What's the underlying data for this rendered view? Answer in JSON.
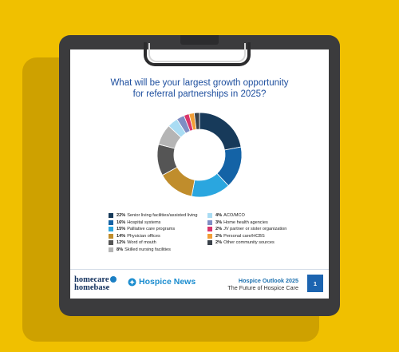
{
  "chart_data": {
    "type": "pie",
    "variant": "donut",
    "title": "What will be your largest growth opportunity for referral partnerships in 2025?",
    "title_lines": [
      "What will be your largest growth opportunity",
      "for referral partnerships in 2025?"
    ],
    "legend_position": "bottom",
    "slices": [
      {
        "label": "Senior living facilities/assisted living",
        "value": 22,
        "display": "22%",
        "color": "#173a5a"
      },
      {
        "label": "Hospital systems",
        "value": 16,
        "display": "16%",
        "color": "#1463a6"
      },
      {
        "label": "Palliative care programs",
        "value": 15,
        "display": "15%",
        "color": "#2aa6df"
      },
      {
        "label": "Physician offices",
        "value": 14,
        "display": "14%",
        "color": "#c08d2c"
      },
      {
        "label": "Word of mouth",
        "value": 12,
        "display": "12%",
        "color": "#555555"
      },
      {
        "label": "Skilled nursing facilities",
        "value": 8,
        "display": "8%",
        "color": "#b5b5b5"
      },
      {
        "label": "ACO/MCO",
        "value": 4,
        "display": "4%",
        "color": "#a9dcf3"
      },
      {
        "label": "Home health agencies",
        "value": 3,
        "display": "3%",
        "color": "#7f8ec4"
      },
      {
        "label": "JV partner or sister organization",
        "value": 2,
        "display": "2%",
        "color": "#d9356b"
      },
      {
        "label": "Personal care/HCBS",
        "value": 2,
        "display": "2%",
        "color": "#f29e36"
      },
      {
        "label": "Other community sources",
        "value": 2,
        "display": "2%",
        "color": "#3a4149"
      }
    ]
  },
  "footer": {
    "logo_homecare_line1": "homecare",
    "logo_homecare_line2": "homebase",
    "logo_hospice_news": "Hospice News",
    "report_title": "Hospice Outlook 2025",
    "report_subtitle": "The Future of Hospice Care",
    "page_number": "1"
  }
}
